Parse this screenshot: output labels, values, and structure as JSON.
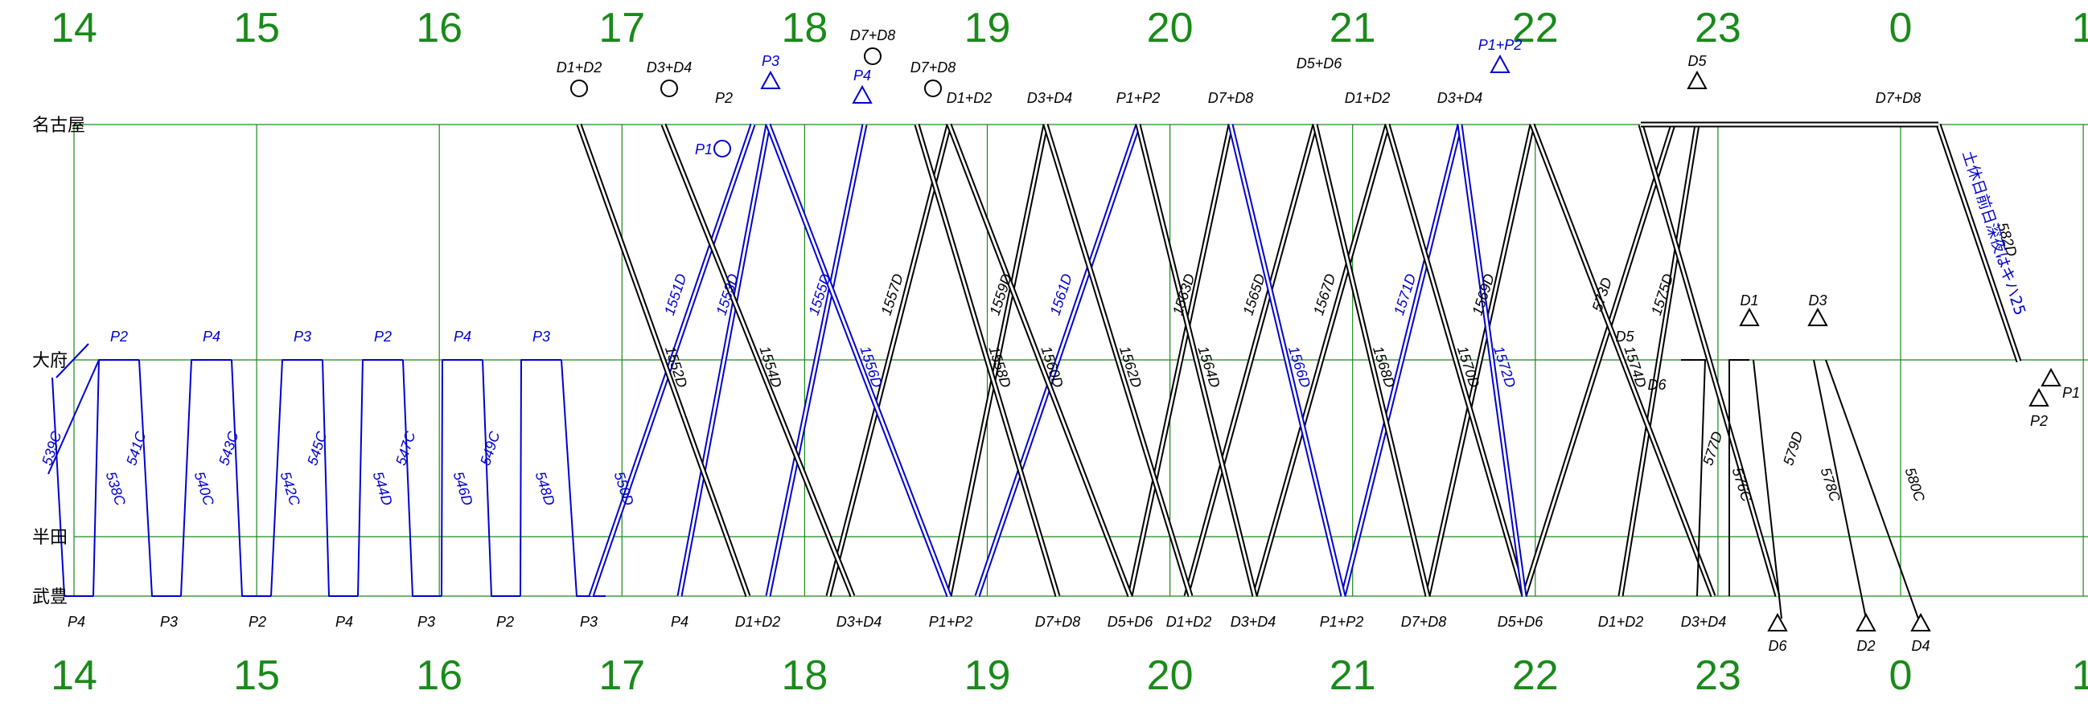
{
  "colors": {
    "grid": "#1a8a1a",
    "hour_text": "#1a8a1a",
    "train_black": "#000000",
    "train_blue": "#0000d0"
  },
  "stations": [
    "名古屋",
    "大府",
    "半田",
    "武豊"
  ],
  "hours": [
    "14",
    "15",
    "16",
    "17",
    "18",
    "19",
    "20",
    "21",
    "22",
    "23",
    "0",
    "1"
  ],
  "note": "土休日前日深夜はキハ25",
  "trains_down": [
    {
      "label": "538C",
      "color": "blue"
    },
    {
      "label": "540C",
      "color": "blue"
    },
    {
      "label": "542C",
      "color": "blue"
    },
    {
      "label": "544D",
      "color": "blue"
    },
    {
      "label": "546D",
      "color": "blue"
    },
    {
      "label": "548D",
      "color": "blue"
    },
    {
      "label": "550D",
      "color": "blue"
    },
    {
      "label": "1552D",
      "color": "black"
    },
    {
      "label": "1554D",
      "color": "black"
    },
    {
      "label": "1556D",
      "color": "blue"
    },
    {
      "label": "1558D",
      "color": "black"
    },
    {
      "label": "1560D",
      "color": "black"
    },
    {
      "label": "1562D",
      "color": "black"
    },
    {
      "label": "1564D",
      "color": "black"
    },
    {
      "label": "1566D",
      "color": "blue"
    },
    {
      "label": "1568D",
      "color": "black"
    },
    {
      "label": "1570D",
      "color": "black"
    },
    {
      "label": "1572D",
      "color": "blue"
    },
    {
      "label": "1574D",
      "color": "black"
    },
    {
      "label": "576C",
      "color": "black"
    },
    {
      "label": "578C",
      "color": "black"
    },
    {
      "label": "580C",
      "color": "black"
    },
    {
      "label": "582D",
      "color": "black"
    }
  ],
  "trains_up": [
    {
      "label": "539C",
      "color": "blue"
    },
    {
      "label": "541C",
      "color": "blue"
    },
    {
      "label": "543C",
      "color": "blue"
    },
    {
      "label": "545C",
      "color": "blue"
    },
    {
      "label": "547C",
      "color": "blue"
    },
    {
      "label": "549C",
      "color": "blue"
    },
    {
      "label": "1551D",
      "color": "blue"
    },
    {
      "label": "1553D",
      "color": "blue"
    },
    {
      "label": "1555D",
      "color": "blue"
    },
    {
      "label": "1557D",
      "color": "black"
    },
    {
      "label": "1559D",
      "color": "black"
    },
    {
      "label": "1561D",
      "color": "blue"
    },
    {
      "label": "1563D",
      "color": "black"
    },
    {
      "label": "1565D",
      "color": "black"
    },
    {
      "label": "1567D",
      "color": "black"
    },
    {
      "label": "1569D",
      "color": "black"
    },
    {
      "label": "1571D",
      "color": "blue"
    },
    {
      "label": "573D",
      "color": "black"
    },
    {
      "label": "1575D",
      "color": "black"
    },
    {
      "label": "577D",
      "color": "black"
    },
    {
      "label": "579D",
      "color": "black"
    }
  ],
  "car_labels": {
    "obu_top": [
      "P2",
      "P4",
      "P3",
      "P2",
      "P4",
      "P3"
    ],
    "taketoyo_bottom": [
      "P4",
      "P3",
      "P2",
      "P4",
      "P3",
      "P2",
      "P3",
      "P4",
      "D1+D2",
      "D3+D4",
      "P1+P2",
      "D7+D8",
      "D5+D6",
      "D1+D2",
      "D3+D4",
      "P1+P2",
      "D7+D8",
      "D5+D6",
      "D1+D2",
      "D3+D4"
    ],
    "nagoya_top": [
      "P2",
      "D1+D2",
      "D3+D4",
      "P1+P2",
      "D7+D8",
      "D1+D2",
      "D3+D4",
      "D7+D8"
    ],
    "nagoya_circles": [
      "D1+D2",
      "D3+D4",
      "D7+D8",
      "D7+D8"
    ],
    "nagoya_triangles": [
      "P3",
      "P4",
      "P1+P2",
      "D5"
    ],
    "misc": [
      "P1",
      "D5+D6",
      "D5",
      "D6",
      "D1",
      "D3",
      "P1",
      "P2",
      "D6",
      "D2",
      "D4"
    ]
  }
}
